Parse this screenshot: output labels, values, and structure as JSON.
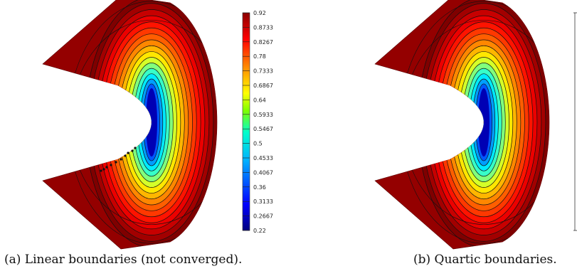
{
  "figure": {
    "panels": [
      {
        "id": "a",
        "caption": "(a) Linear boundaries (not converged)."
      },
      {
        "id": "b",
        "caption": "(b) Quartic boundaries."
      }
    ]
  },
  "colorbar": {
    "ticks": [
      "0.92",
      "0.8733",
      "0.8267",
      "0.78",
      "0.7333",
      "0.6867",
      "0.64",
      "0.5933",
      "0.5467",
      "0.5",
      "0.4533",
      "0.4067",
      "0.36",
      "0.3133",
      "0.2667",
      "0.22"
    ],
    "colors": [
      "#00007f",
      "#0000ff",
      "#007fff",
      "#00ffff",
      "#7fff7f",
      "#ffff00",
      "#ff7f00",
      "#ff0000",
      "#7f0000"
    ]
  }
}
